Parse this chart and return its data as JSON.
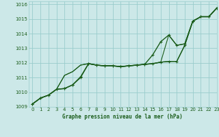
{
  "title": "Graphe pression niveau de la mer (hPa)",
  "background_color": "#cce8e8",
  "grid_color": "#99cccc",
  "line_color": "#1a5c1a",
  "xlim": [
    -0.5,
    23
  ],
  "ylim": [
    1009,
    1016.2
  ],
  "xticks": [
    0,
    1,
    2,
    3,
    4,
    5,
    6,
    7,
    8,
    9,
    10,
    11,
    12,
    13,
    14,
    15,
    16,
    17,
    18,
    19,
    20,
    21,
    22,
    23
  ],
  "yticks": [
    1009,
    1010,
    1011,
    1012,
    1013,
    1014,
    1015,
    1016
  ],
  "series": [
    {
      "y": [
        1009.2,
        1009.6,
        1009.8,
        1010.2,
        1010.25,
        1010.5,
        1011.0,
        1011.95,
        1011.85,
        1011.8,
        1011.8,
        1011.75,
        1011.8,
        1011.85,
        1011.9,
        1011.95,
        1012.05,
        1012.1,
        1012.1,
        1013.2,
        1014.85,
        1015.15,
        1015.15,
        1015.75
      ],
      "marker": true,
      "lw": 1.0
    },
    {
      "y": [
        1009.2,
        1009.6,
        1009.8,
        1010.2,
        1010.25,
        1010.5,
        1011.05,
        1011.95,
        1011.85,
        1011.8,
        1011.8,
        1011.75,
        1011.8,
        1011.85,
        1011.9,
        1012.55,
        1013.45,
        1013.9,
        1013.2,
        1013.3,
        1014.85,
        1015.15,
        1015.15,
        1015.75
      ],
      "marker": true,
      "lw": 1.0
    },
    {
      "y": [
        1009.2,
        1009.6,
        1009.8,
        1010.2,
        1011.15,
        1011.4,
        1011.85,
        1011.95,
        1011.85,
        1011.8,
        1011.8,
        1011.75,
        1011.8,
        1011.85,
        1011.9,
        1011.95,
        1012.05,
        1012.1,
        1012.1,
        1013.2,
        1014.85,
        1015.15,
        1015.15,
        1015.75
      ],
      "marker": false,
      "lw": 0.8
    },
    {
      "y": [
        1009.2,
        1009.6,
        1009.8,
        1010.2,
        1011.15,
        1011.4,
        1011.85,
        1011.95,
        1011.85,
        1011.8,
        1011.8,
        1011.75,
        1011.8,
        1011.85,
        1011.9,
        1011.95,
        1012.05,
        1013.9,
        1013.2,
        1013.3,
        1014.85,
        1015.15,
        1015.15,
        1015.75
      ],
      "marker": false,
      "lw": 0.8
    }
  ]
}
